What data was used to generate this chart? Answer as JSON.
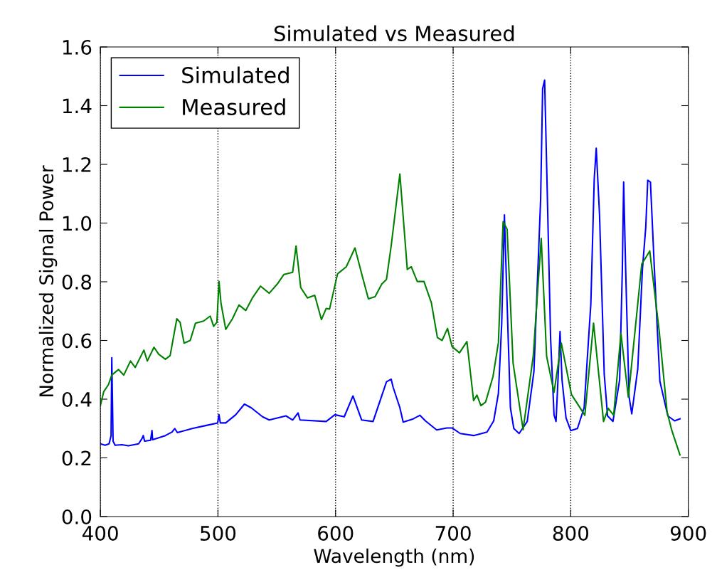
{
  "chart_data": {
    "type": "line",
    "title": "Simulated vs Measured",
    "xlabel": "Wavelength (nm)",
    "ylabel": "Normalized Signal Power",
    "xlim": [
      400,
      900
    ],
    "xticks": [
      400,
      500,
      600,
      700,
      800,
      900
    ],
    "ylim": [
      0,
      1.6
    ],
    "yticks": [
      {
        "value": 0,
        "label": "0.0"
      },
      0.2,
      0.4,
      0.6,
      0.8,
      {
        "value": 1,
        "label": "1.0"
      },
      1.2,
      1.4,
      1.6
    ],
    "grid": "x",
    "legend": "top left",
    "marker": "none",
    "line_style": "solid",
    "series": [
      {
        "name": "Simulated",
        "color": "#0000ff",
        "x": [
          400,
          404.0,
          407.4,
          409.1,
          409.7,
          410.8,
          412.5,
          418.2,
          423.9,
          432.5,
          435.3,
          436.5,
          437.6,
          442.7,
          443.9,
          444.4,
          455.3,
          461.0,
          463.2,
          465.5,
          478.1,
          489.5,
          499.7,
          500.9,
          502.0,
          506.6,
          515.1,
          522.5,
          528.2,
          537.9,
          543.6,
          557.8,
          563.5,
          568.1,
          569.8,
          592.0,
          599.4,
          607.4,
          614.8,
          622.2,
          631.9,
          643.3,
          647.3,
          649.0,
          654.7,
          657.5,
          666.1,
          671.8,
          676.4,
          686.0,
          694.6,
          699.1,
          706.0,
          717.4,
          728.8,
          734.5,
          738.5,
          741.3,
          743.6,
          745.9,
          748.7,
          751.6,
          756.1,
          763.0,
          768.7,
          774.4,
          776.1,
          777.8,
          779.5,
          782.9,
          785.8,
          787.5,
          789.7,
          790.9,
          792.6,
          796.0,
          800.0,
          805.7,
          811.4,
          817.1,
          820.0,
          821.7,
          824.5,
          828.5,
          831.3,
          835.9,
          841.6,
          843.9,
          845.0,
          846.7,
          849.6,
          851.9,
          857.0,
          861.0,
          863.8,
          865.5,
          867.8,
          871.2,
          875.8,
          882.6,
          888.3,
          892.9
        ],
        "values": [
          0.248,
          0.243,
          0.248,
          0.276,
          0.541,
          0.257,
          0.243,
          0.245,
          0.241,
          0.248,
          0.265,
          0.276,
          0.257,
          0.26,
          0.293,
          0.262,
          0.276,
          0.288,
          0.3,
          0.286,
          0.3,
          0.31,
          0.319,
          0.347,
          0.319,
          0.319,
          0.347,
          0.383,
          0.371,
          0.34,
          0.329,
          0.343,
          0.329,
          0.353,
          0.329,
          0.324,
          0.347,
          0.34,
          0.411,
          0.329,
          0.324,
          0.459,
          0.468,
          0.44,
          0.371,
          0.322,
          0.333,
          0.345,
          0.326,
          0.295,
          0.302,
          0.302,
          0.283,
          0.276,
          0.288,
          0.326,
          0.42,
          0.657,
          1.028,
          0.726,
          0.371,
          0.3,
          0.283,
          0.324,
          0.494,
          1.08,
          1.458,
          1.487,
          1.199,
          0.605,
          0.346,
          0.324,
          0.513,
          0.631,
          0.466,
          0.336,
          0.293,
          0.3,
          0.371,
          0.725,
          1.151,
          1.255,
          1.028,
          0.485,
          0.343,
          0.324,
          0.466,
          0.844,
          1.14,
          0.844,
          0.409,
          0.35,
          0.503,
          0.844,
          0.985,
          1.146,
          1.139,
          0.839,
          0.461,
          0.343,
          0.326,
          0.333
        ]
      },
      {
        "name": "Measured",
        "color": "#008000",
        "x": [
          400,
          402.8,
          406.8,
          409.7,
          415.4,
          419.9,
          425.6,
          429.6,
          437.0,
          439.9,
          445.6,
          449.6,
          455.3,
          459.3,
          465.0,
          467.8,
          471.2,
          476.4,
          480.9,
          487.7,
          493.4,
          496.3,
          499.1,
          500.9,
          502.6,
          506.6,
          512.3,
          517.9,
          523.6,
          529.3,
          536.2,
          543.6,
          550.4,
          556.1,
          563.5,
          566.4,
          570.4,
          576.1,
          582.3,
          588.0,
          592.0,
          594.9,
          601.7,
          609.1,
          616.5,
          622.2,
          627.9,
          633.6,
          639.3,
          643.3,
          647.3,
          654.7,
          661.0,
          664.4,
          669.5,
          675.2,
          681.5,
          686.6,
          690.6,
          695.2,
          699.1,
          705.4,
          711.7,
          717.4,
          720.2,
          723.6,
          727.6,
          733.9,
          738.5,
          742.5,
          745.9,
          751.0,
          759.5,
          768.1,
          774.9,
          779.5,
          785.8,
          792.0,
          800.6,
          812.0,
          819.4,
          827.9,
          831.9,
          836.5,
          842.7,
          849.0,
          860.4,
          867.2,
          875.2,
          882.0,
          886.0,
          892.9
        ],
        "values": [
          0.378,
          0.425,
          0.449,
          0.482,
          0.501,
          0.482,
          0.53,
          0.508,
          0.567,
          0.53,
          0.577,
          0.553,
          0.536,
          0.548,
          0.674,
          0.662,
          0.591,
          0.6,
          0.659,
          0.666,
          0.683,
          0.648,
          0.662,
          0.801,
          0.726,
          0.638,
          0.674,
          0.721,
          0.702,
          0.745,
          0.785,
          0.761,
          0.792,
          0.825,
          0.832,
          0.922,
          0.78,
          0.745,
          0.754,
          0.671,
          0.709,
          0.707,
          0.827,
          0.851,
          0.915,
          0.827,
          0.742,
          0.749,
          0.792,
          0.808,
          0.922,
          1.167,
          0.842,
          0.851,
          0.801,
          0.801,
          0.728,
          0.61,
          0.6,
          0.641,
          0.579,
          0.558,
          0.596,
          0.395,
          0.414,
          0.378,
          0.39,
          0.477,
          0.593,
          1.005,
          0.979,
          0.522,
          0.296,
          0.546,
          0.948,
          0.546,
          0.423,
          0.591,
          0.416,
          0.345,
          0.659,
          0.324,
          0.369,
          0.345,
          0.624,
          0.407,
          0.86,
          0.905,
          0.633,
          0.355,
          0.293,
          0.21
        ]
      }
    ]
  }
}
